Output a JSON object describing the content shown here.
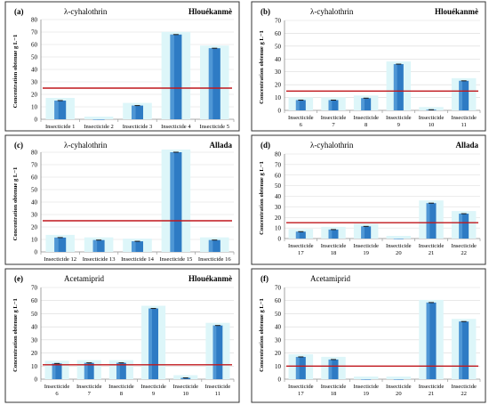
{
  "colors": {
    "bar": "#2e7bc4",
    "bar_shade": "#6fb4e6",
    "threshold": "#c0171c",
    "highlight": "#ddf6f9",
    "axis": "#8c8c8c",
    "grid": "#d9d9d9",
    "frame": "#333333"
  },
  "chart_data": [
    {
      "type": "bar",
      "panel": "(a)",
      "title": "λ-cyhalothrin",
      "location": "Hlouékanmè",
      "ylabel": "Concentration obtenue g L−1",
      "ylim": [
        0,
        80
      ],
      "yticks": [
        0,
        10,
        20,
        30,
        40,
        50,
        60,
        70,
        80
      ],
      "threshold": 25,
      "categories": [
        "Insecticide 1",
        "Insecticide 2",
        "Insecticide 3",
        "Insecticide 4",
        "Insecticide 5"
      ],
      "values": [
        15,
        0,
        11,
        68,
        57
      ]
    },
    {
      "type": "bar",
      "panel": "(b)",
      "title": "λ-cyhalothrin",
      "location": "Hlouékanmè",
      "ylabel": "Concentration obtenue g L−1",
      "ylim": [
        0,
        70
      ],
      "yticks": [
        0,
        10,
        20,
        30,
        40,
        50,
        60,
        70
      ],
      "threshold": 15,
      "categories": [
        "Insecticide 6",
        "Insecticide 7",
        "Insecticide 8",
        "Insecticide 9",
        "Insecticide 10",
        "Insecticide 11"
      ],
      "values": [
        8,
        8,
        9.5,
        36,
        0.5,
        23
      ]
    },
    {
      "type": "bar",
      "panel": "(c)",
      "title": "λ-cyhalothrin",
      "location": "Allada",
      "ylabel": "Concentration obtenue g L−1",
      "ylim": [
        0,
        80
      ],
      "yticks": [
        0,
        10,
        20,
        30,
        40,
        50,
        60,
        70,
        80
      ],
      "threshold": 25,
      "categories": [
        "Insecticide 12",
        "Insecticide 13",
        "Insecticide 14",
        "Insecticide 15",
        "Insecticide 16"
      ],
      "values": [
        11.5,
        9.5,
        8.5,
        80,
        9.5
      ]
    },
    {
      "type": "bar",
      "panel": "(d)",
      "title": "λ-cyhalothrin",
      "location": "Allada",
      "ylabel": "Concentration obtenue g L−1",
      "ylim": [
        0,
        80
      ],
      "yticks": [
        0,
        10,
        20,
        30,
        40,
        50,
        60,
        70,
        80
      ],
      "threshold": 15,
      "categories": [
        "Insecticide 17",
        "Insecticide 18",
        "Insecticide 19",
        "Insecticide 20",
        "Insecticide 21",
        "Insecticide 22"
      ],
      "values": [
        6.5,
        8.5,
        11.5,
        0,
        33.5,
        23.5
      ]
    },
    {
      "type": "bar",
      "panel": "(e)",
      "title": "Acetamiprid",
      "location": "Hlouékanmè",
      "ylabel": "Concentration obtenue g L−1",
      "ylim": [
        0,
        70
      ],
      "yticks": [
        0,
        10,
        20,
        30,
        40,
        50,
        60,
        70
      ],
      "threshold": 11,
      "categories": [
        "Insecticide 6",
        "Insecticide 7",
        "Insecticide 8",
        "Insecticide 9",
        "Insecticide 10",
        "Insecticide 11"
      ],
      "values": [
        12,
        12.5,
        12.5,
        54,
        1,
        41
      ]
    },
    {
      "type": "bar",
      "panel": "(f)",
      "title": "Acetamiprid",
      "location": "",
      "ylabel": "Concentration obtenue g L−1",
      "ylim": [
        0,
        70
      ],
      "yticks": [
        0,
        10,
        20,
        30,
        40,
        50,
        60,
        70
      ],
      "threshold": 10,
      "categories": [
        "Insecticide 17",
        "Insecticide 18",
        "Insecticide 19",
        "Insecticide 20",
        "Insecticide 21",
        "Insecticide 22"
      ],
      "values": [
        17,
        15,
        0,
        0,
        58.5,
        44
      ]
    }
  ]
}
